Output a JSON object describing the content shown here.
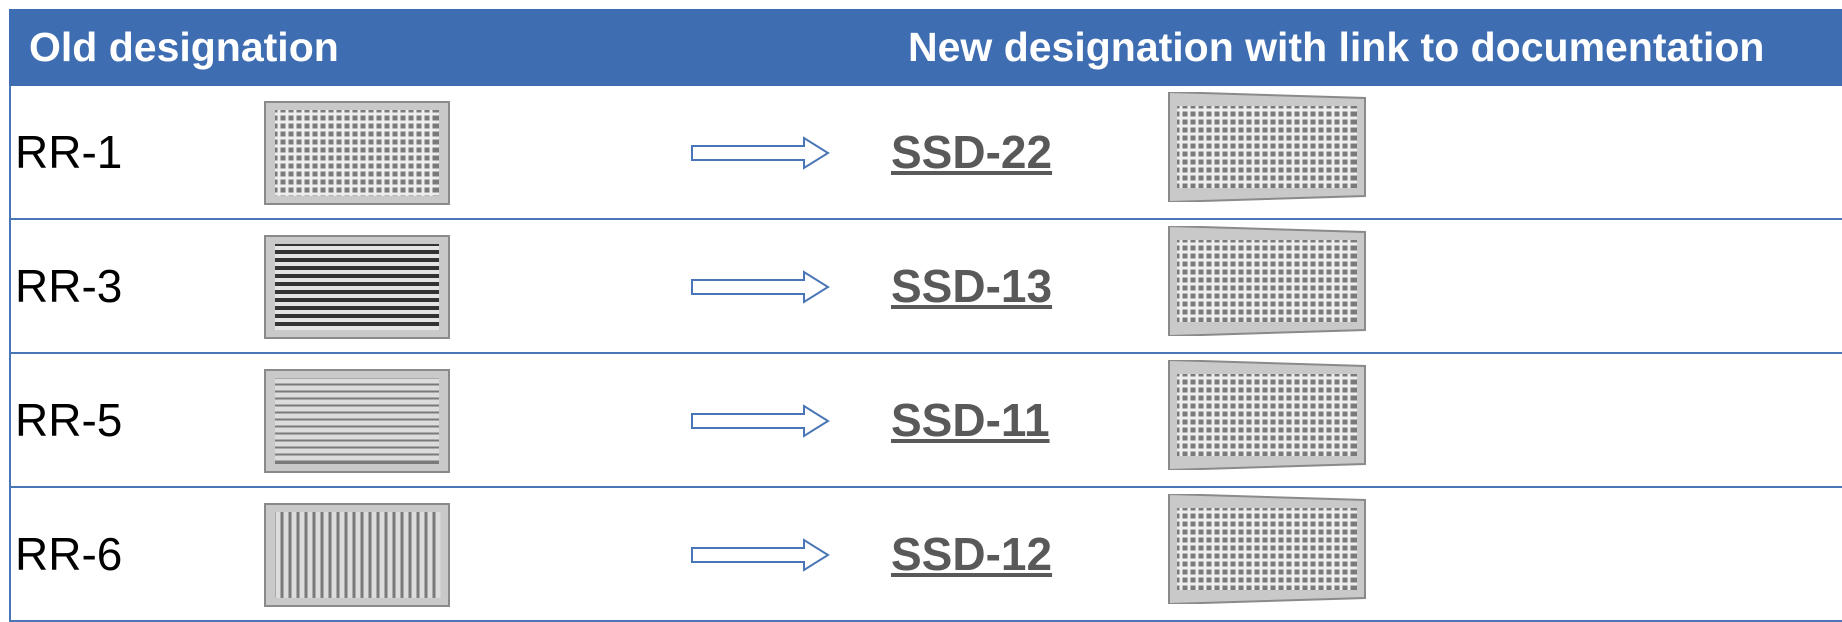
{
  "header": {
    "columns": [
      "Old designation",
      "New designation with link to documentation"
    ]
  },
  "table": {
    "rows": [
      {
        "old": "RR-1",
        "new": "SSD-22"
      },
      {
        "old": "RR-3",
        "new": "SSD-13"
      },
      {
        "old": "RR-5",
        "new": "SSD-11"
      },
      {
        "old": "RR-6",
        "new": "SSD-12"
      }
    ]
  }
}
